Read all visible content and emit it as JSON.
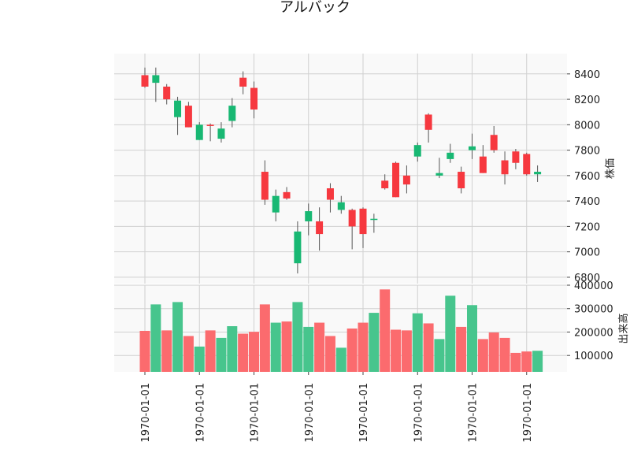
{
  "chart_data": {
    "type": "candlestick",
    "title": "アルバック",
    "price_axis": {
      "label": "株価",
      "ylim": [
        6750,
        8560
      ],
      "ticks": [
        6800,
        7000,
        7200,
        7400,
        7600,
        7800,
        8000,
        8200,
        8400
      ]
    },
    "volume_axis": {
      "label": "出来高",
      "ylim": [
        30000,
        400000
      ],
      "ticks": [
        100000,
        200000,
        300000,
        400000
      ],
      "tick_labels": [
        "100000",
        "200000",
        "300000",
        "400000"
      ]
    },
    "x_tick_labels": [
      "1970-01-01",
      "1970-01-01",
      "1970-01-01",
      "1970-01-01",
      "1970-01-01",
      "1970-01-01",
      "1970-01-01",
      "1970-01-01"
    ],
    "grid": true,
    "colors": {
      "up": "#18b873",
      "down": "#f6383f",
      "volume_up": "#47c58d",
      "volume_down": "#fb6b6e",
      "wick": "#555555",
      "panel_bg": "#f9f9f9",
      "grid": "#d0d0d0"
    },
    "candles": [
      {
        "o": 8390,
        "h": 8450,
        "l": 8290,
        "c": 8300,
        "v": 205000
      },
      {
        "o": 8330,
        "h": 8450,
        "l": 8180,
        "c": 8390,
        "v": 318000
      },
      {
        "o": 8300,
        "h": 8320,
        "l": 8160,
        "c": 8200,
        "v": 207000
      },
      {
        "o": 8060,
        "h": 8220,
        "l": 7920,
        "c": 8190,
        "v": 328000
      },
      {
        "o": 8150,
        "h": 8180,
        "l": 7980,
        "c": 7980,
        "v": 183000
      },
      {
        "o": 7880,
        "h": 8020,
        "l": 7880,
        "c": 8000,
        "v": 138000
      },
      {
        "o": 8000,
        "h": 8010,
        "l": 7870,
        "c": 7990,
        "v": 207000
      },
      {
        "o": 7890,
        "h": 8020,
        "l": 7860,
        "c": 7970,
        "v": 175000
      },
      {
        "o": 8030,
        "h": 8210,
        "l": 7980,
        "c": 8150,
        "v": 225000
      },
      {
        "o": 8370,
        "h": 8420,
        "l": 8240,
        "c": 8300,
        "v": 193000
      },
      {
        "o": 8290,
        "h": 8340,
        "l": 8050,
        "c": 8120,
        "v": 201000
      },
      {
        "o": 7630,
        "h": 7720,
        "l": 7370,
        "c": 7410,
        "v": 318000
      },
      {
        "o": 7310,
        "h": 7490,
        "l": 7240,
        "c": 7440,
        "v": 240000
      },
      {
        "o": 7470,
        "h": 7510,
        "l": 7410,
        "c": 7420,
        "v": 245000
      },
      {
        "o": 6910,
        "h": 7240,
        "l": 6830,
        "c": 7160,
        "v": 328000
      },
      {
        "o": 7240,
        "h": 7380,
        "l": 7130,
        "c": 7320,
        "v": 222000
      },
      {
        "o": 7240,
        "h": 7350,
        "l": 7010,
        "c": 7140,
        "v": 240000
      },
      {
        "o": 7500,
        "h": 7540,
        "l": 7310,
        "c": 7410,
        "v": 183000
      },
      {
        "o": 7330,
        "h": 7440,
        "l": 7300,
        "c": 7390,
        "v": 133000
      },
      {
        "o": 7330,
        "h": 7340,
        "l": 7020,
        "c": 7200,
        "v": 215000
      },
      {
        "o": 7340,
        "h": 7350,
        "l": 7030,
        "c": 7140,
        "v": 240000
      },
      {
        "o": 7260,
        "h": 7300,
        "l": 7150,
        "c": 7260,
        "v": 282000
      },
      {
        "o": 7560,
        "h": 7610,
        "l": 7490,
        "c": 7500,
        "v": 382000
      },
      {
        "o": 7700,
        "h": 7710,
        "l": 7430,
        "c": 7430,
        "v": 210000
      },
      {
        "o": 7600,
        "h": 7680,
        "l": 7460,
        "c": 7530,
        "v": 207000
      },
      {
        "o": 7750,
        "h": 7860,
        "l": 7710,
        "c": 7840,
        "v": 280000
      },
      {
        "o": 8080,
        "h": 8090,
        "l": 7860,
        "c": 7960,
        "v": 237000
      },
      {
        "o": 7600,
        "h": 7740,
        "l": 7580,
        "c": 7620,
        "v": 170000
      },
      {
        "o": 7730,
        "h": 7850,
        "l": 7700,
        "c": 7780,
        "v": 355000
      },
      {
        "o": 7630,
        "h": 7670,
        "l": 7460,
        "c": 7500,
        "v": 222000
      },
      {
        "o": 7800,
        "h": 7930,
        "l": 7730,
        "c": 7830,
        "v": 315000
      },
      {
        "o": 7750,
        "h": 7840,
        "l": 7620,
        "c": 7620,
        "v": 170000
      },
      {
        "o": 7920,
        "h": 7990,
        "l": 7780,
        "c": 7800,
        "v": 198000
      },
      {
        "o": 7720,
        "h": 7790,
        "l": 7530,
        "c": 7610,
        "v": 175000
      },
      {
        "o": 7790,
        "h": 7810,
        "l": 7650,
        "c": 7700,
        "v": 111000
      },
      {
        "o": 7770,
        "h": 7780,
        "l": 7600,
        "c": 7610,
        "v": 117000
      },
      {
        "o": 7610,
        "h": 7680,
        "l": 7550,
        "c": 7630,
        "v": 120000
      }
    ]
  }
}
